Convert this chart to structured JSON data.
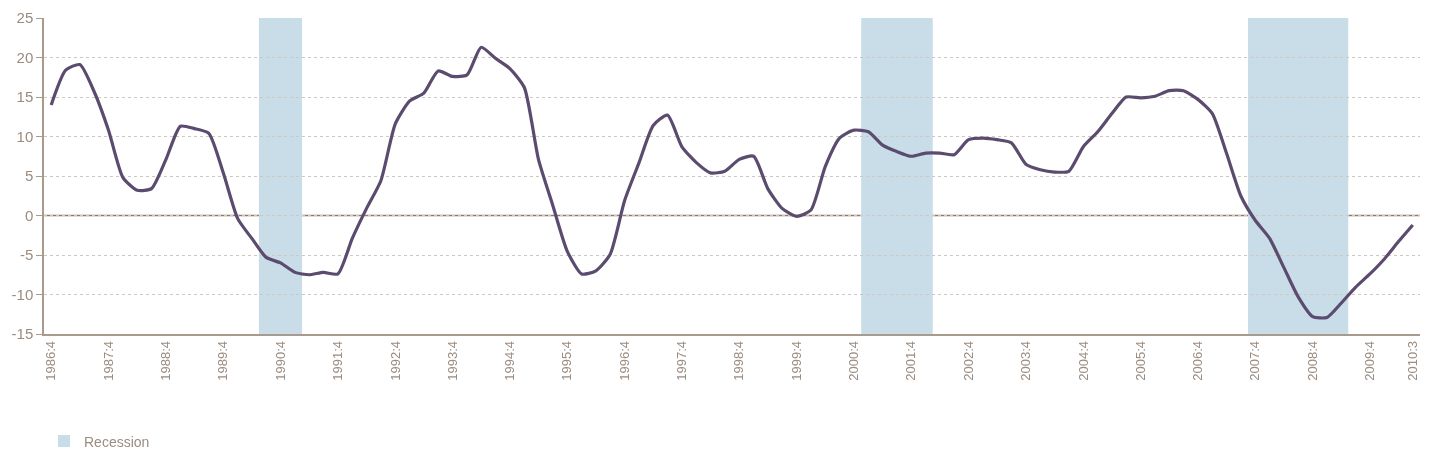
{
  "chart_data": {
    "type": "line",
    "x": [
      "1986-10",
      "1987-01",
      "1987-04",
      "1987-07",
      "1987-10",
      "1988-01",
      "1988-04",
      "1988-07",
      "1988-10",
      "1989-01",
      "1989-04",
      "1989-07",
      "1989-10",
      "1990-01",
      "1990-04",
      "1990-07",
      "1990-10",
      "1991-01",
      "1991-04",
      "1991-07",
      "1991-10",
      "1992-01",
      "1992-04",
      "1992-07",
      "1992-10",
      "1993-01",
      "1993-04",
      "1993-07",
      "1993-10",
      "1994-01",
      "1994-04",
      "1994-07",
      "1994-10",
      "1995-01",
      "1995-04",
      "1995-07",
      "1995-10",
      "1996-01",
      "1996-04",
      "1996-07",
      "1996-10",
      "1997-01",
      "1997-04",
      "1997-07",
      "1997-10",
      "1998-01",
      "1998-04",
      "1998-07",
      "1998-10",
      "1999-01",
      "1999-04",
      "1999-07",
      "1999-10",
      "2000-01",
      "2000-04",
      "2000-07",
      "2000-10",
      "2001-01",
      "2001-04",
      "2001-07",
      "2001-10",
      "2002-01",
      "2002-04",
      "2002-07",
      "2002-10",
      "2003-01",
      "2003-04",
      "2003-07",
      "2003-10",
      "2004-01",
      "2004-04",
      "2004-07",
      "2004-10",
      "2005-01",
      "2005-04",
      "2005-07",
      "2005-10",
      "2006-01",
      "2006-04",
      "2006-07",
      "2006-10",
      "2007-01",
      "2007-04",
      "2007-07",
      "2007-10",
      "2008-01",
      "2008-04",
      "2008-07",
      "2008-10",
      "2009-01",
      "2009-04",
      "2009-07",
      "2009-10",
      "2010-01",
      "2010-04",
      "2010-07"
    ],
    "series": [
      {
        "color": "#5b4b6e",
        "values": [
          14,
          18.4,
          19.1,
          15.7,
          10.8,
          4.8,
          3.2,
          3.4,
          7.1,
          11.3,
          11.0,
          10.4,
          5.4,
          -0.4,
          -2.9,
          -5.3,
          -6.0,
          -7.2,
          -7.5,
          -7.2,
          -7.4,
          -2.9,
          0.9,
          4.4,
          11.6,
          14.5,
          15.5,
          18.3,
          17.6,
          17.8,
          21.3,
          19.9,
          18.6,
          16.2,
          7.1,
          1.3,
          -4.5,
          -7.4,
          -7.0,
          -4.9,
          1.9,
          6.7,
          11.4,
          12.7,
          8.7,
          6.7,
          5.4,
          5.6,
          7.1,
          7.5,
          3.4,
          0.9,
          -0.1,
          0.7,
          6.2,
          9.8,
          10.8,
          10.6,
          8.9,
          8.1,
          7.5,
          7.9,
          7.9,
          7.7,
          9.6,
          9.8,
          9.6,
          9.2,
          6.5,
          5.8,
          5.5,
          5.6,
          8.7,
          10.6,
          12.9,
          15.0,
          14.9,
          15.1,
          15.8,
          15.8,
          14.7,
          12.9,
          7.9,
          2.5,
          -0.6,
          -2.9,
          -6.6,
          -10.3,
          -12.8,
          -12.9,
          -11.1,
          -9.1,
          -7.4,
          -5.5,
          -3.3,
          -1.2
        ]
      }
    ],
    "xlim": [
      "1986-08-16",
      "2010-08-16"
    ],
    "xticks": [
      {
        "value": "1986-10",
        "label": "1986:4"
      },
      {
        "value": "1987-10",
        "label": "1987:4"
      },
      {
        "value": "1988-10",
        "label": "1988:4"
      },
      {
        "value": "1989-10",
        "label": "1989:4"
      },
      {
        "value": "1990-10",
        "label": "1990:4"
      },
      {
        "value": "1991-10",
        "label": "1991:4"
      },
      {
        "value": "1992-10",
        "label": "1992:4"
      },
      {
        "value": "1993-10",
        "label": "1993:4"
      },
      {
        "value": "1994-10",
        "label": "1994:4"
      },
      {
        "value": "1995-10",
        "label": "1995:4"
      },
      {
        "value": "1996-10",
        "label": "1996:4"
      },
      {
        "value": "1997-10",
        "label": "1997:4"
      },
      {
        "value": "1998-10",
        "label": "1998:4"
      },
      {
        "value": "1999-10",
        "label": "1999:4"
      },
      {
        "value": "2000-10",
        "label": "2000:4"
      },
      {
        "value": "2001-10",
        "label": "2001:4"
      },
      {
        "value": "2002-10",
        "label": "2002:4"
      },
      {
        "value": "2003-10",
        "label": "2003:4"
      },
      {
        "value": "2004-10",
        "label": "2004:4"
      },
      {
        "value": "2005-10",
        "label": "2005:4"
      },
      {
        "value": "2006-10",
        "label": "2006:4"
      },
      {
        "value": "2007-10",
        "label": "2007:4"
      },
      {
        "value": "2008-10",
        "label": "2008:4"
      },
      {
        "value": "2009-10",
        "label": "2009:4"
      },
      {
        "value": "2010-07",
        "label": "2010:3"
      }
    ],
    "ylim": [
      -15,
      25
    ],
    "yticks": [
      -15,
      -10,
      -5,
      0,
      5,
      10,
      15,
      20,
      25
    ],
    "grid": "y",
    "ref_lines": [
      {
        "axis": "y",
        "value": 0,
        "color": "#8c7b6b"
      }
    ],
    "bands": [
      {
        "axis": "x",
        "from": "1990-05-16",
        "to": "1991-02-15",
        "label": "Recession",
        "color": "#c9dde9"
      },
      {
        "axis": "x",
        "from": "2000-11-16",
        "to": "2002-02-15",
        "color": "#c9dde9"
      },
      {
        "axis": "x",
        "from": "2007-08-16",
        "to": "2009-05-16",
        "color": "#c9dde9"
      }
    ],
    "legend": "bottom left",
    "marker": "none",
    "line_style": "solid"
  }
}
